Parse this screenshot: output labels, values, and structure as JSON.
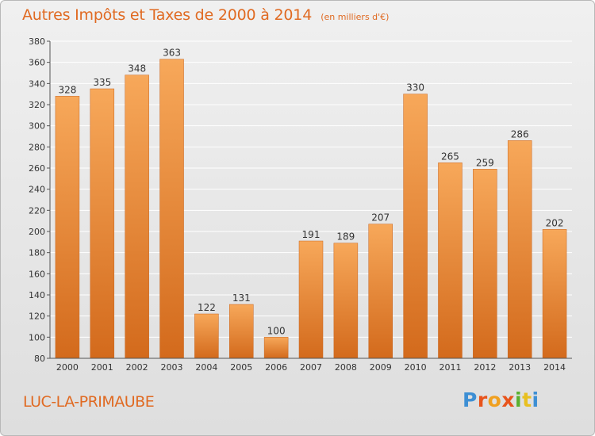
{
  "header": {
    "title": "Autres Impôts et Taxes de 2000 à 2014",
    "subtitle": "(en milliers d'€)"
  },
  "footer": {
    "commune": "LUC-LA-PRIMAUBE",
    "logo_text": "Proxiti"
  },
  "colors": {
    "title": "#e06a22",
    "bar_light": "#f7a85a",
    "bar_dark": "#d36a1c",
    "grid": "#ffffff",
    "axis_text": "#333333",
    "logo_letters": [
      "#3d8fd4",
      "#e8541c",
      "#f0a020",
      "#e8541c",
      "#5ab030",
      "#e8c020",
      "#3d8fd4"
    ]
  },
  "chart_data": {
    "type": "bar",
    "title": "Autres Impôts et Taxes de 2000 à 2014",
    "subtitle": "(en milliers d'€)",
    "categories": [
      "2000",
      "2001",
      "2002",
      "2003",
      "2004",
      "2005",
      "2006",
      "2007",
      "2008",
      "2009",
      "2010",
      "2011",
      "2012",
      "2013",
      "2014"
    ],
    "values": [
      328,
      335,
      348,
      363,
      122,
      131,
      100,
      191,
      189,
      207,
      330,
      265,
      259,
      286,
      202
    ],
    "ylim": [
      80,
      380
    ],
    "yticks": [
      80,
      100,
      120,
      140,
      160,
      180,
      200,
      220,
      240,
      260,
      280,
      300,
      320,
      340,
      360,
      380
    ],
    "grid": true,
    "xlabel": "",
    "ylabel": ""
  }
}
